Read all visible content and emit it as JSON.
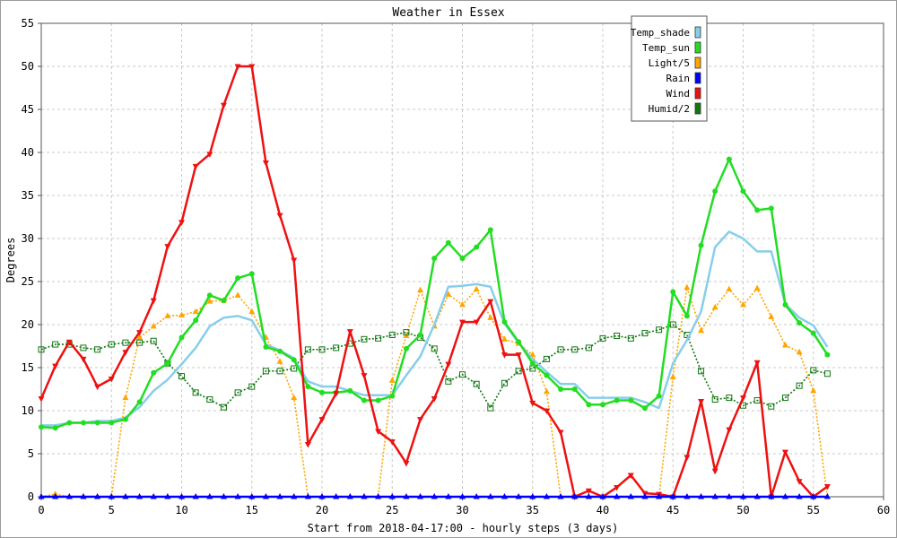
{
  "chart_data": {
    "type": "line",
    "title": "Weather in Essex",
    "xlabel": "Start from 2018-04-17:00 - hourly steps (3 days)",
    "ylabel": "Degrees",
    "xlim": [
      0,
      60
    ],
    "ylim": [
      0,
      55
    ],
    "xticks": [
      0,
      5,
      10,
      15,
      20,
      25,
      30,
      35,
      40,
      45,
      50,
      55,
      60
    ],
    "yticks": [
      0,
      5,
      10,
      15,
      20,
      25,
      30,
      35,
      40,
      45,
      50,
      55
    ],
    "grid": true,
    "legend_position": "top-right",
    "series": [
      {
        "name": "Temp_shade",
        "color": "#87ceeb",
        "line_style": "solid",
        "marker": "none",
        "values": [
          8.3,
          8.3,
          8.6,
          8.6,
          8.8,
          8.8,
          9.2,
          10.4,
          12.3,
          13.6,
          15.4,
          17.3,
          19.8,
          20.8,
          21.0,
          20.5,
          17.7,
          17.0,
          16.1,
          13.4,
          12.8,
          12.8,
          12.3,
          11.8,
          11.8,
          11.8,
          14.1,
          16.3,
          20.0,
          24.4,
          24.5,
          24.7,
          24.4,
          20.1,
          17.9,
          16.0,
          14.5,
          13.1,
          13.1,
          11.5,
          11.5,
          11.5,
          11.5,
          11.0,
          10.3,
          15.5,
          18.2,
          21.5,
          29.0,
          30.8,
          30.0,
          28.5,
          28.5,
          22.4,
          20.8,
          19.9,
          17.4
        ]
      },
      {
        "name": "Temp_sun",
        "color": "#22dd22",
        "line_style": "solid",
        "marker": "circle",
        "values": [
          8.1,
          8.0,
          8.6,
          8.6,
          8.6,
          8.6,
          9.0,
          11.0,
          14.4,
          15.5,
          18.5,
          20.5,
          23.4,
          22.8,
          25.4,
          25.9,
          17.4,
          16.9,
          15.9,
          12.8,
          12.1,
          12.1,
          12.3,
          11.2,
          11.2,
          11.7,
          17.2,
          18.8,
          27.7,
          29.5,
          27.7,
          29.0,
          31.0,
          20.3,
          18.0,
          15.5,
          14.1,
          12.5,
          12.5,
          10.7,
          10.7,
          11.2,
          11.2,
          10.3,
          11.7,
          23.8,
          21.0,
          29.2,
          35.5,
          39.2,
          35.5,
          33.3,
          33.5,
          22.3,
          20.2,
          19.0,
          16.5
        ]
      },
      {
        "name": "Light/5",
        "color": "#ffa500",
        "line_style": "dotted",
        "marker": "triangle",
        "values": [
          0.0,
          0.3,
          0.0,
          0.0,
          0.0,
          0.0,
          11.5,
          18.5,
          19.8,
          21.0,
          21.1,
          21.5,
          22.7,
          22.8,
          23.4,
          21.5,
          18.5,
          15.7,
          11.5,
          0.0,
          0.0,
          0.0,
          0.0,
          0.0,
          0.0,
          13.5,
          18.7,
          24.0,
          19.8,
          23.5,
          22.3,
          24.1,
          20.8,
          18.3,
          17.8,
          16.5,
          12.2,
          0.0,
          0.0,
          0.0,
          0.0,
          0.0,
          0.0,
          0.0,
          0.0,
          13.9,
          24.3,
          19.3,
          22.0,
          24.1,
          22.3,
          24.2,
          20.9,
          17.6,
          16.8,
          12.3,
          0.0
        ]
      },
      {
        "name": "Rain",
        "color": "#0000ff",
        "line_style": "solid",
        "marker": "triangle",
        "values": [
          0,
          0,
          0,
          0,
          0,
          0,
          0,
          0,
          0,
          0,
          0,
          0,
          0,
          0,
          0,
          0,
          0,
          0,
          0,
          0,
          0,
          0,
          0,
          0,
          0,
          0,
          0,
          0,
          0,
          0,
          0,
          0,
          0,
          0,
          0,
          0,
          0,
          0,
          0,
          0,
          0,
          0,
          0,
          0,
          0,
          0,
          0,
          0,
          0,
          0,
          0,
          0,
          0,
          0,
          0,
          0,
          0
        ]
      },
      {
        "name": "Wind",
        "color": "#ee1111",
        "line_style": "solid",
        "marker": "triangle-down",
        "values": [
          11.4,
          15.2,
          18.0,
          16.0,
          12.8,
          13.7,
          16.8,
          19.1,
          22.8,
          29.1,
          31.9,
          38.4,
          39.8,
          45.5,
          50.0,
          50.0,
          38.8,
          32.7,
          27.5,
          6.1,
          9.0,
          12.0,
          19.2,
          14.1,
          7.6,
          6.4,
          3.9,
          9.0,
          11.4,
          15.4,
          20.3,
          20.3,
          22.7,
          16.5,
          16.5,
          10.9,
          10.0,
          7.5,
          0.0,
          0.7,
          0.0,
          1.1,
          2.5,
          0.4,
          0.3,
          0.0,
          4.6,
          11.1,
          3.0,
          7.8,
          11.5,
          15.6,
          0.0,
          5.2,
          1.8,
          0.0,
          1.2
        ]
      },
      {
        "name": "Humid/2",
        "color": "#117711",
        "line_style": "dotted",
        "marker": "square",
        "values": [
          17.1,
          17.7,
          17.7,
          17.3,
          17.1,
          17.7,
          17.9,
          17.9,
          18.1,
          15.5,
          14.0,
          12.1,
          11.3,
          10.4,
          12.1,
          12.8,
          14.6,
          14.6,
          14.9,
          17.1,
          17.1,
          17.3,
          17.8,
          18.3,
          18.4,
          18.8,
          19.1,
          18.5,
          17.2,
          13.4,
          14.2,
          13.1,
          10.3,
          13.2,
          14.6,
          14.9,
          16.0,
          17.1,
          17.1,
          17.3,
          18.4,
          18.7,
          18.4,
          19.0,
          19.4,
          20.0,
          18.8,
          14.6,
          11.3,
          11.5,
          10.6,
          11.2,
          10.5,
          11.5,
          12.9,
          14.7,
          14.3
        ]
      }
    ]
  }
}
